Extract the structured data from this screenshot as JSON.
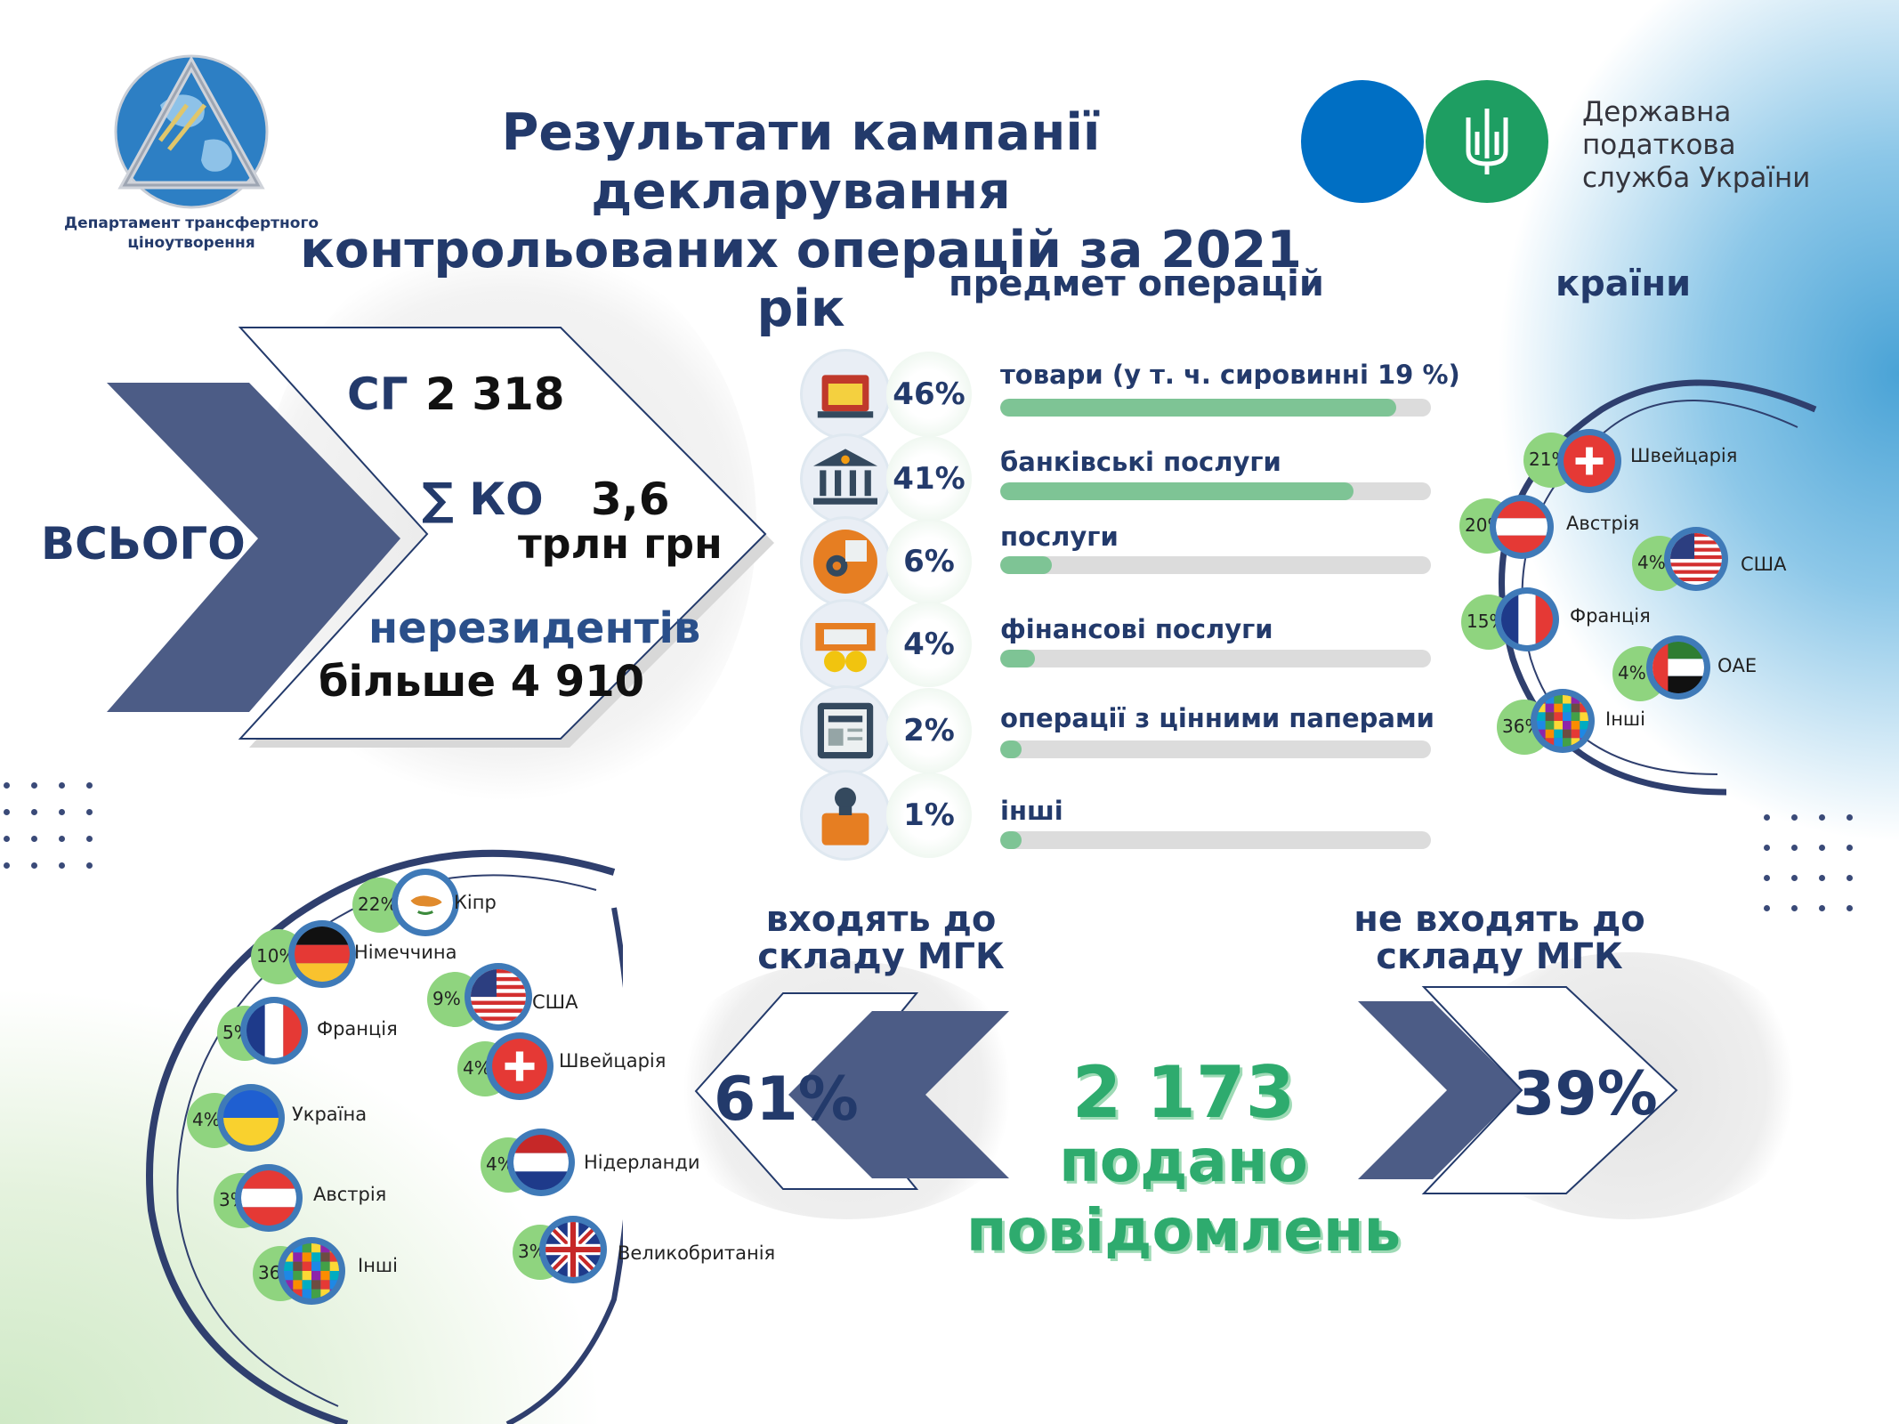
{
  "header": {
    "title_line1": "Результати кампанії декларування",
    "title_line2": "контрольованих операцій за 2021 рік",
    "dept_line1": "Департамент трансфертного",
    "dept_line2": "ціноутворення",
    "dps_line1": "Державна",
    "dps_line2": "податкова",
    "dps_line3": "служба України"
  },
  "totals": {
    "label": "ВСЬОГО",
    "sg_label": "СГ",
    "sg_value": "2 318",
    "ko_label": "∑ КО",
    "ko_value": "3,6",
    "ko_unit": "трлн грн",
    "nonres_label": "нерезидентів",
    "nonres_value": "більше 4 910"
  },
  "operations": {
    "title": "предмет операцій",
    "items": [
      {
        "pct": "46%",
        "label": "товари (у т. ч. сировинні 19 %)",
        "share": 0.46,
        "icon": "shop-icon"
      },
      {
        "pct": "41%",
        "label": "банківські послуги",
        "share": 0.41,
        "icon": "bank-icon"
      },
      {
        "pct": "6%",
        "label": "послуги",
        "share": 0.06,
        "icon": "gears-icon"
      },
      {
        "pct": "4%",
        "label": "фінансові послуги",
        "share": 0.04,
        "icon": "money-icon"
      },
      {
        "pct": "2%",
        "label": "операції з цінними паперами",
        "share": 0.02,
        "icon": "newspaper-icon"
      },
      {
        "pct": "1%",
        "label": "інші",
        "share": 0.01,
        "icon": "briefcase-icon"
      }
    ]
  },
  "countries_top": {
    "title": "країни",
    "items": [
      {
        "pct": "21%",
        "name": "Швейцарія",
        "flag": "flag-switzerland"
      },
      {
        "pct": "20%",
        "name": "Австрія",
        "flag": "flag-austria"
      },
      {
        "pct": "4%",
        "name": "США",
        "flag": "flag-usa"
      },
      {
        "pct": "15%",
        "name": "Франція",
        "flag": "flag-france"
      },
      {
        "pct": "4%",
        "name": "ОАЕ",
        "flag": "flag-uae"
      },
      {
        "pct": "36%",
        "name": "Інші",
        "flag": "flag-others"
      }
    ]
  },
  "countries_bottom": {
    "items": [
      {
        "pct": "22%",
        "name": "Кіпр",
        "flag": "flag-cyprus"
      },
      {
        "pct": "10%",
        "name": "Німеччина",
        "flag": "flag-germany"
      },
      {
        "pct": "9%",
        "name": "США",
        "flag": "flag-usa"
      },
      {
        "pct": "5%",
        "name": "Франція",
        "flag": "flag-france"
      },
      {
        "pct": "4%",
        "name": "Швейцарія",
        "flag": "flag-switzerland"
      },
      {
        "pct": "4%",
        "name": "Україна",
        "flag": "flag-ukraine"
      },
      {
        "pct": "4%",
        "name": "Нідерланди",
        "flag": "flag-netherlands"
      },
      {
        "pct": "3%",
        "name": "Австрія",
        "flag": "flag-austria"
      },
      {
        "pct": "3%",
        "name": "Великобританія",
        "flag": "flag-uk"
      },
      {
        "pct": "36%",
        "name": "Інші",
        "flag": "flag-others"
      }
    ]
  },
  "mgk": {
    "in_line1": "входять до",
    "in_line2": "складу МГК",
    "in_pct": "61%",
    "out_line1": "не входять до",
    "out_line2": "складу МГК",
    "out_pct": "39%",
    "total_value": "2 173",
    "total_line1": "подано",
    "total_line2": "повідомлень"
  },
  "colors": {
    "navy": "#233a6b",
    "chevron": "#4c5c86",
    "green": "#7ec495",
    "green_text": "#2eab6e",
    "dps_blue": "#006fc4",
    "dps_green": "#1e9e62"
  }
}
